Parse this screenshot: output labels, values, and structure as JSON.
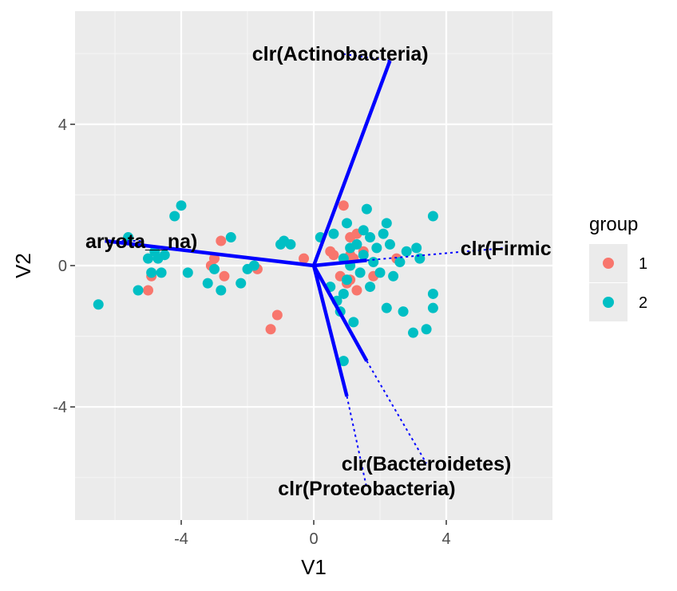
{
  "chart_data": {
    "type": "scatter",
    "xlabel": "V1",
    "ylabel": "V2",
    "xlim": [
      -7.2,
      7.2
    ],
    "ylim": [
      -7.3,
      7.3
    ],
    "xticks": [
      -4,
      0,
      4
    ],
    "yticks": [
      -4,
      0,
      4
    ],
    "grid": true,
    "legend": {
      "title": "group",
      "position": "right",
      "entries": [
        {
          "label": "1",
          "color": "#F8766D"
        },
        {
          "label": "2",
          "color": "#00BFC4"
        }
      ]
    },
    "series": [
      {
        "name": "1",
        "color": "#F8766D",
        "points": [
          [
            -4.9,
            -0.3
          ],
          [
            -5.0,
            -0.7
          ],
          [
            -3.1,
            0.0
          ],
          [
            -3.0,
            0.2
          ],
          [
            -2.7,
            -0.3
          ],
          [
            -2.8,
            0.7
          ],
          [
            -1.7,
            -0.1
          ],
          [
            -1.3,
            -1.8
          ],
          [
            -1.1,
            -1.4
          ],
          [
            -0.3,
            0.2
          ],
          [
            0.5,
            0.4
          ],
          [
            0.6,
            0.3
          ],
          [
            0.8,
            -0.3
          ],
          [
            0.9,
            1.7
          ],
          [
            1.0,
            -0.5
          ],
          [
            1.1,
            0.3
          ],
          [
            1.1,
            0.8
          ],
          [
            1.2,
            0.2
          ],
          [
            1.3,
            0.9
          ],
          [
            1.1,
            -0.4
          ],
          [
            1.3,
            -0.7
          ],
          [
            1.5,
            0.4
          ],
          [
            1.8,
            -0.3
          ],
          [
            2.5,
            0.2
          ]
        ]
      },
      {
        "name": "2",
        "color": "#00BFC4",
        "points": [
          [
            -6.5,
            -1.1
          ],
          [
            -5.6,
            0.8
          ],
          [
            -5.3,
            -0.7
          ],
          [
            -5.0,
            0.2
          ],
          [
            -4.9,
            -0.2
          ],
          [
            -4.8,
            0.4
          ],
          [
            -4.7,
            0.2
          ],
          [
            -4.5,
            0.3
          ],
          [
            -4.6,
            -0.2
          ],
          [
            -4.2,
            1.4
          ],
          [
            -4.0,
            1.7
          ],
          [
            -3.8,
            -0.2
          ],
          [
            -3.2,
            -0.5
          ],
          [
            -3.0,
            -0.1
          ],
          [
            -2.8,
            -0.7
          ],
          [
            -2.5,
            0.8
          ],
          [
            -2.2,
            -0.5
          ],
          [
            -2.0,
            -0.1
          ],
          [
            -1.8,
            0.0
          ],
          [
            -0.9,
            0.7
          ],
          [
            -0.7,
            0.6
          ],
          [
            0.2,
            0.8
          ],
          [
            0.5,
            -0.6
          ],
          [
            0.6,
            0.9
          ],
          [
            0.7,
            -1.0
          ],
          [
            0.8,
            -1.3
          ],
          [
            0.9,
            -0.8
          ],
          [
            0.9,
            0.2
          ],
          [
            1.0,
            1.2
          ],
          [
            1.0,
            -0.4
          ],
          [
            1.1,
            0.5
          ],
          [
            1.1,
            0.0
          ],
          [
            1.2,
            -1.6
          ],
          [
            1.3,
            0.6
          ],
          [
            1.4,
            -0.2
          ],
          [
            1.5,
            1.0
          ],
          [
            1.5,
            0.3
          ],
          [
            1.6,
            1.6
          ],
          [
            1.7,
            0.8
          ],
          [
            1.7,
            -0.6
          ],
          [
            1.8,
            0.1
          ],
          [
            1.9,
            0.5
          ],
          [
            2.0,
            -0.2
          ],
          [
            2.1,
            0.9
          ],
          [
            2.2,
            1.2
          ],
          [
            2.2,
            -1.2
          ],
          [
            2.3,
            0.6
          ],
          [
            2.4,
            -0.3
          ],
          [
            2.6,
            0.1
          ],
          [
            2.7,
            -1.3
          ],
          [
            2.8,
            0.4
          ],
          [
            3.0,
            -1.9
          ],
          [
            3.1,
            0.5
          ],
          [
            3.2,
            0.2
          ],
          [
            3.4,
            -1.8
          ],
          [
            3.6,
            -1.2
          ],
          [
            3.6,
            -0.8
          ],
          [
            3.6,
            1.4
          ],
          [
            0.9,
            -2.7
          ],
          [
            -1.0,
            0.6
          ]
        ]
      }
    ],
    "arrows": [
      {
        "label": "clr(Actinobacteria)",
        "x": 2.3,
        "y": 5.8,
        "text_x": 0.8,
        "text_y": 6.0
      },
      {
        "label": "clr(Firmic",
        "x": 1.6,
        "y": 0.15,
        "text_x": 5.8,
        "text_y": 0.5
      },
      {
        "label": "aryota__na)",
        "x": -6.3,
        "y": 0.7,
        "text_x": -5.2,
        "text_y": 0.7
      },
      {
        "label": "clr(Bacteroidetes)",
        "x": 1.6,
        "y": -2.7,
        "text_x": 3.4,
        "text_y": -5.6
      },
      {
        "label": "clr(Proteobacteria)",
        "x": 1.0,
        "y": -3.7,
        "text_x": 1.6,
        "text_y": -6.3
      }
    ]
  }
}
